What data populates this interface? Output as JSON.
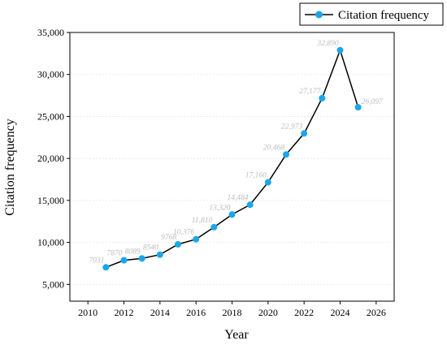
{
  "chart_data": {
    "type": "line",
    "xlabel": "Year",
    "ylabel": "Citation frequency",
    "xlim": [
      2009,
      2027
    ],
    "ylim": [
      3000,
      35000
    ],
    "x_ticks": [
      2010,
      2012,
      2014,
      2016,
      2018,
      2020,
      2022,
      2024,
      2026
    ],
    "y_ticks": [
      5000,
      10000,
      15000,
      20000,
      25000,
      30000,
      35000
    ],
    "x_tick_labels": [
      "2010",
      "2012",
      "2014",
      "2016",
      "2018",
      "2020",
      "2022",
      "2024",
      "2026"
    ],
    "y_tick_labels": [
      "5,000",
      "10,000",
      "15,000",
      "20,000",
      "25,000",
      "30,000",
      "35,000"
    ],
    "grid": "horizontal-dashed",
    "legend": "top-right",
    "series": [
      {
        "name": "Citation frequency",
        "color": "#1aa7e8",
        "line_color": "#000000",
        "x": [
          2011,
          2012,
          2013,
          2014,
          2015,
          2016,
          2017,
          2018,
          2019,
          2020,
          2021,
          2022,
          2023,
          2024,
          2025
        ],
        "values": [
          7031,
          7870,
          8089,
          8540,
          9768,
          10376,
          11810,
          13320,
          14484,
          17160,
          20468,
          22973,
          27177,
          32890,
          26097
        ],
        "labels": [
          "7031",
          "7870",
          "8089",
          "8540",
          "9768",
          "10,376",
          "11,810",
          "13,320",
          "14,484",
          "17,160",
          "20,468",
          "22,973",
          "27,177",
          "32,890",
          "26,097"
        ]
      }
    ]
  }
}
